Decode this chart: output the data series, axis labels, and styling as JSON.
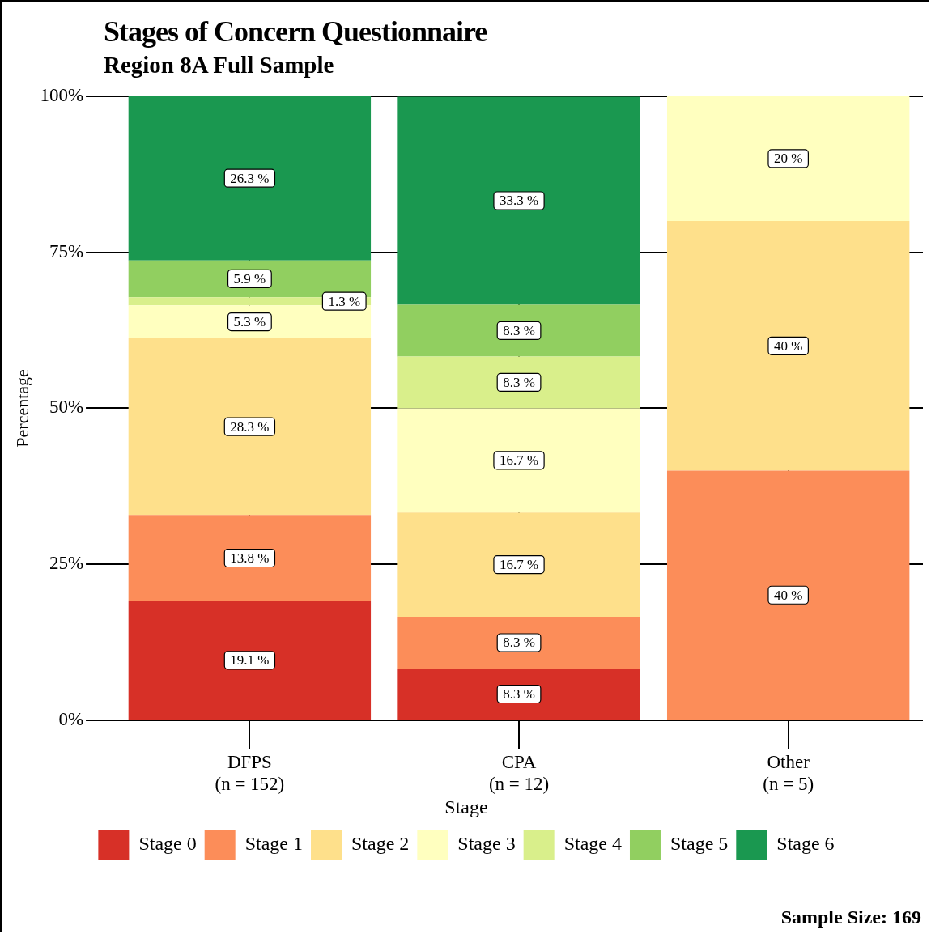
{
  "chart_data": {
    "type": "bar",
    "title": "Stages of Concern Questionnaire",
    "subtitle": "Region 8A Full Sample",
    "ylabel": "Percentage",
    "legend_title": "Stage",
    "legend": "bottom",
    "stacked": true,
    "grid": true,
    "categories": [
      "DFPS\n(n = 152)",
      "CPA\n(n = 12)",
      "Other\n(n = 5)"
    ],
    "ylim": [
      0,
      100
    ],
    "yticks": [
      {
        "value": 0,
        "label": "0%"
      },
      {
        "value": 25,
        "label": "25%"
      },
      {
        "value": 50,
        "label": "50%"
      },
      {
        "value": 75,
        "label": "75%"
      },
      {
        "value": 100,
        "label": "100%"
      }
    ],
    "series": [
      {
        "name": "Stage 0",
        "color": "#d73027",
        "values": [
          19.1,
          8.3,
          null
        ],
        "value_labels": [
          "19.1 %",
          "8.3 %",
          null
        ]
      },
      {
        "name": "Stage 1",
        "color": "#fc8d59",
        "values": [
          13.8,
          8.3,
          40
        ],
        "value_labels": [
          "13.8 %",
          "8.3 %",
          "40 %"
        ]
      },
      {
        "name": "Stage 2",
        "color": "#fee08b",
        "values": [
          28.3,
          16.7,
          40
        ],
        "value_labels": [
          "28.3 %",
          "16.7 %",
          "40 %"
        ]
      },
      {
        "name": "Stage 3",
        "color": "#ffffbf",
        "values": [
          5.3,
          16.7,
          20
        ],
        "value_labels": [
          "5.3 %",
          "16.7 %",
          "20 %"
        ]
      },
      {
        "name": "Stage 4",
        "color": "#d9ef8b",
        "values": [
          1.3,
          8.3,
          null
        ],
        "value_labels": [
          "1.3 %",
          "8.3 %",
          null
        ]
      },
      {
        "name": "Stage 5",
        "color": "#91cf60",
        "values": [
          5.9,
          8.3,
          null
        ],
        "value_labels": [
          "5.9 %",
          "8.3 %",
          null
        ]
      },
      {
        "name": "Stage 6",
        "color": "#1a9850",
        "values": [
          26.3,
          33.3,
          null
        ],
        "value_labels": [
          "26.3 %",
          "33.3 %",
          null
        ]
      }
    ],
    "annotations": [
      "Sample Size: 169"
    ]
  }
}
